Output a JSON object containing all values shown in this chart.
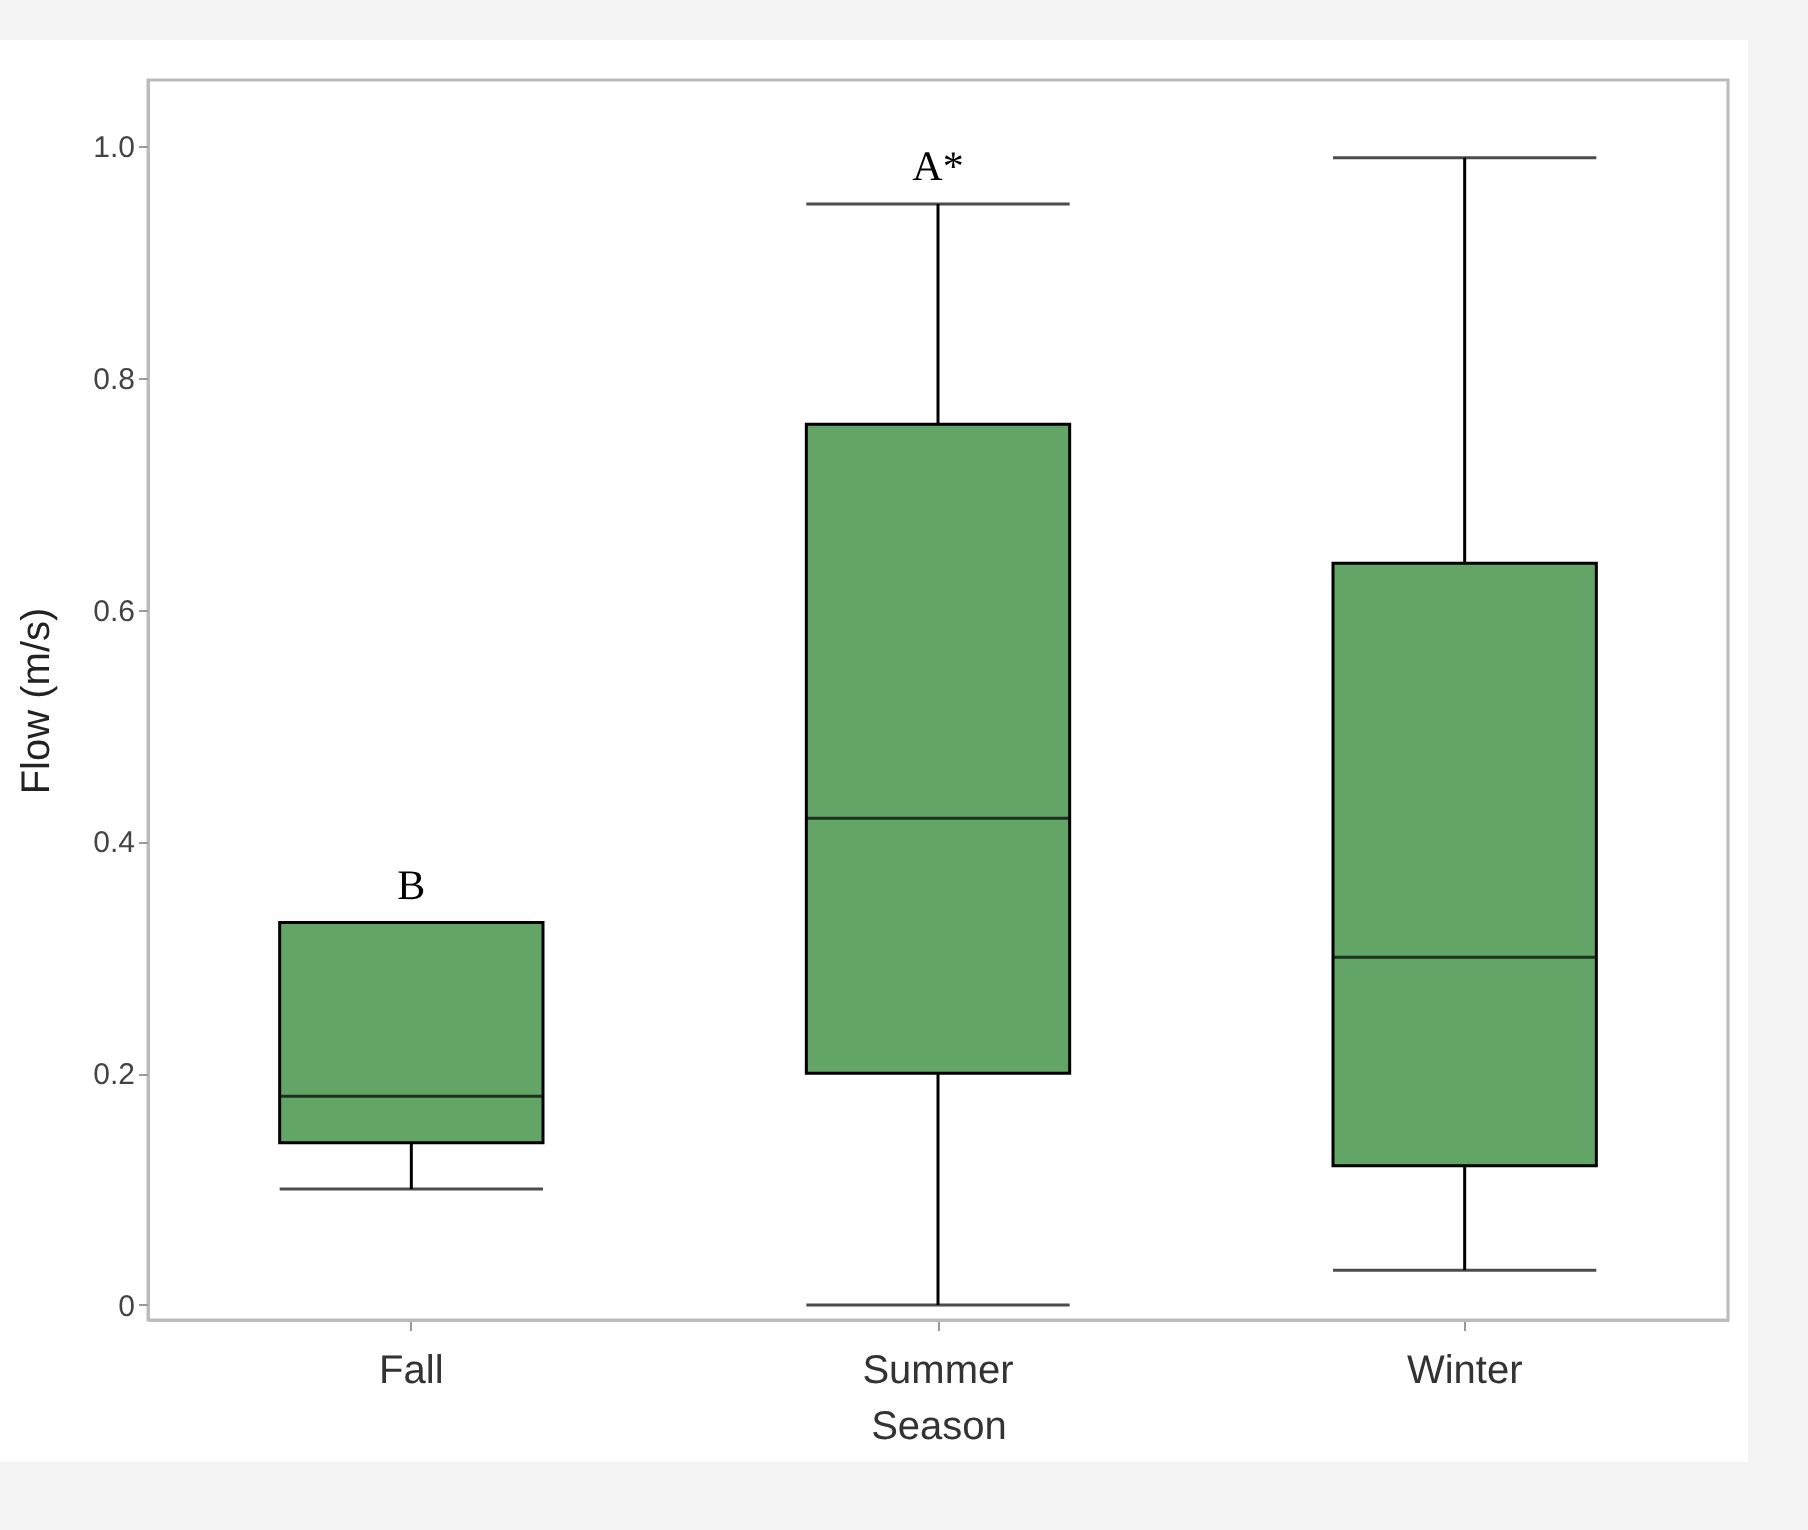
{
  "chart_data": {
    "type": "box",
    "xlabel": "Season",
    "ylabel": "Flow (m/s)",
    "categories": [
      "Fall",
      "Summer",
      "Winter"
    ],
    "series": [
      {
        "color": "#63a467",
        "boxes": [
          {
            "low": 0.1,
            "q1": 0.14,
            "median": 0.18,
            "q3": 0.33,
            "high": 0.33
          },
          {
            "low": 0.0,
            "q1": 0.2,
            "median": 0.42,
            "q3": 0.76,
            "high": 0.95
          },
          {
            "low": 0.03,
            "q1": 0.12,
            "median": 0.3,
            "q3": 0.64,
            "high": 0.99
          }
        ]
      }
    ],
    "ylim": [
      -0.013,
      1.057
    ],
    "yticks": [
      {
        "value": 0,
        "label": "0"
      },
      0.2,
      0.4,
      0.6,
      0.8,
      {
        "value": 1,
        "label": "1.0"
      }
    ],
    "grid": false,
    "annotations": [
      "B",
      "A*"
    ]
  }
}
